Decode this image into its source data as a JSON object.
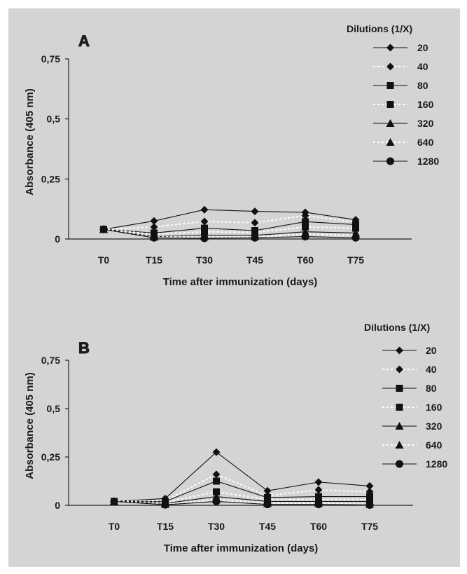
{
  "chart_data": [
    {
      "type": "line",
      "panel": "A",
      "xlabel": "Time after immunization (days)",
      "ylabel": "Absorbance (405 nm)",
      "categories": [
        "T0",
        "T15",
        "T30",
        "T45",
        "T60",
        "T75"
      ],
      "ylim": [
        0,
        0.75
      ],
      "yticks": [
        "0",
        "0,25",
        "0,5",
        "0,75"
      ],
      "legend_title": "Dilutions (1/X)",
      "grid": false,
      "series": [
        {
          "name": "20",
          "values": [
            0.04,
            0.075,
            0.122,
            0.115,
            0.111,
            0.08
          ],
          "line": "solid",
          "marker": "diamond"
        },
        {
          "name": "40",
          "values": [
            0.04,
            0.05,
            0.073,
            0.068,
            0.097,
            0.07
          ],
          "line": "dotted",
          "marker": "diamond"
        },
        {
          "name": "80",
          "values": [
            0.04,
            0.025,
            0.045,
            0.035,
            0.072,
            0.06
          ],
          "line": "solid",
          "marker": "square"
        },
        {
          "name": "160",
          "values": [
            0.04,
            0.02,
            0.03,
            0.028,
            0.05,
            0.045
          ],
          "line": "dotted",
          "marker": "square"
        },
        {
          "name": "320",
          "values": [
            0.04,
            0.01,
            0.015,
            0.015,
            0.03,
            0.025
          ],
          "line": "solid",
          "marker": "triangle"
        },
        {
          "name": "640",
          "values": [
            0.04,
            0.008,
            0.01,
            0.01,
            0.02,
            0.015
          ],
          "line": "dotted",
          "marker": "triangle"
        },
        {
          "name": "1280",
          "values": [
            0.04,
            0.005,
            0.003,
            0.005,
            0.01,
            0.005
          ],
          "line": "solid",
          "marker": "circle"
        }
      ]
    },
    {
      "type": "line",
      "panel": "B",
      "xlabel": "Time after immunization (days)",
      "ylabel": "Absorbance (405 nm)",
      "categories": [
        "T0",
        "T15",
        "T30",
        "T45",
        "T60",
        "T75"
      ],
      "ylim": [
        0,
        0.75
      ],
      "yticks": [
        "0",
        "0,25",
        "0,5",
        "0,75"
      ],
      "legend_title": "Dilutions (1/X)",
      "grid": false,
      "series": [
        {
          "name": "20",
          "values": [
            0.02,
            0.035,
            0.275,
            0.075,
            0.12,
            0.1
          ],
          "line": "solid",
          "marker": "diamond"
        },
        {
          "name": "40",
          "values": [
            0.02,
            0.025,
            0.16,
            0.05,
            0.08,
            0.07
          ],
          "line": "dotted",
          "marker": "diamond"
        },
        {
          "name": "80",
          "values": [
            0.02,
            0.02,
            0.125,
            0.04,
            0.045,
            0.045
          ],
          "line": "solid",
          "marker": "square"
        },
        {
          "name": "160",
          "values": [
            0.02,
            0.015,
            0.07,
            0.03,
            0.03,
            0.03
          ],
          "line": "dotted",
          "marker": "square"
        },
        {
          "name": "320",
          "values": [
            0.02,
            0.01,
            0.045,
            0.02,
            0.02,
            0.02
          ],
          "line": "solid",
          "marker": "triangle"
        },
        {
          "name": "640",
          "values": [
            0.02,
            0.005,
            0.03,
            0.01,
            0.01,
            0.005
          ],
          "line": "dotted",
          "marker": "triangle"
        },
        {
          "name": "1280",
          "values": [
            0.02,
            0.003,
            0.02,
            0.005,
            0.005,
            0.002
          ],
          "line": "solid",
          "marker": "circle"
        }
      ]
    }
  ]
}
